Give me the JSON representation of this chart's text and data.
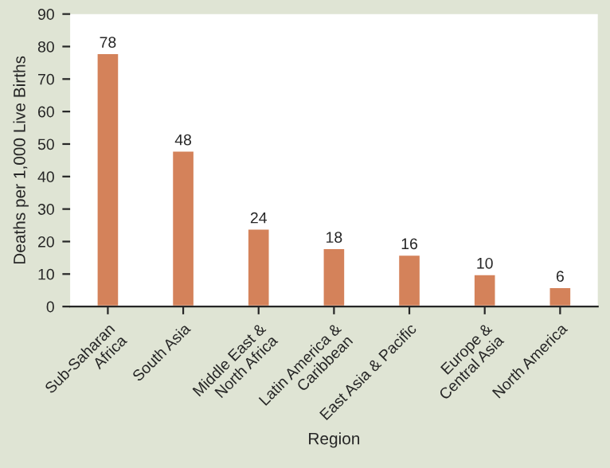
{
  "chart_data": {
    "type": "bar",
    "xlabel": "Region",
    "ylabel": "Deaths per 1,000 Live Births",
    "categories": [
      "Sub-Saharan\nAfrica",
      "South Asia",
      "Middle East &\nNorth Africa",
      "Latin America &\nCaribbean",
      "East Asia & Pacific",
      "Europe &\nCentral Asia",
      "North America"
    ],
    "values": [
      78,
      48,
      24,
      18,
      16,
      10,
      6
    ],
    "color": "#d4825a",
    "ylim": [
      0,
      90
    ],
    "yticks": [
      0,
      10,
      20,
      30,
      40,
      50,
      60,
      70,
      80,
      90
    ],
    "data_labels": true,
    "grid": false,
    "legend": false
  }
}
